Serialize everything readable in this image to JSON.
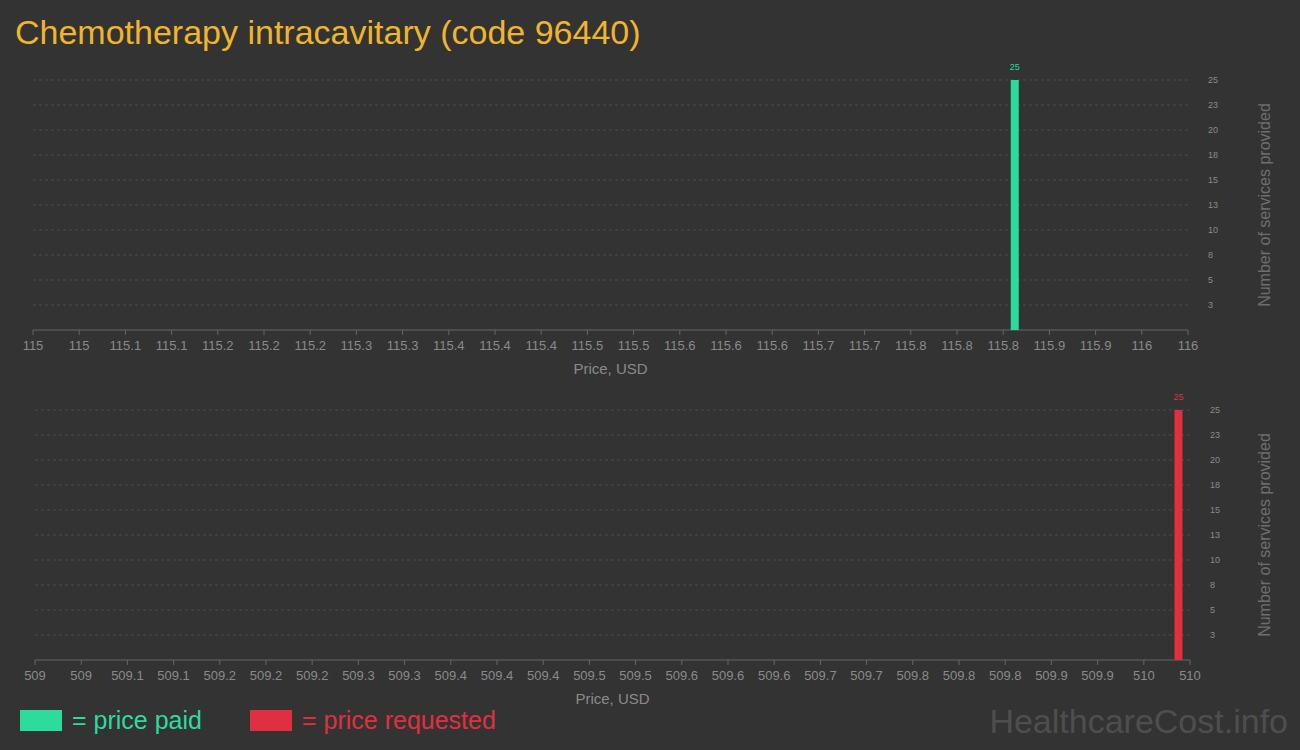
{
  "chart_data": [
    {
      "type": "bar",
      "title": "Chemotherapy intracavitary (code 96440)",
      "x_label": "Price, USD",
      "y_label": "Number of services provided",
      "x": [
        115.85
      ],
      "series": [
        {
          "name": "= price paid",
          "color": "#2bdc9c",
          "values": [
            25
          ]
        }
      ],
      "xlim": [
        115,
        116
      ],
      "xticks": [
        115,
        {
          "value": 115.04,
          "label": "115"
        },
        {
          "value": 115.08,
          "label": "115.1"
        },
        {
          "value": 115.12,
          "label": "115.1"
        },
        {
          "value": 115.16,
          "label": "115.2"
        },
        115.2,
        {
          "value": 115.24,
          "label": "115.2"
        },
        {
          "value": 115.28,
          "label": "115.3"
        },
        {
          "value": 115.32,
          "label": "115.3"
        },
        {
          "value": 115.36,
          "label": "115.4"
        },
        115.4,
        {
          "value": 115.44,
          "label": "115.4"
        },
        {
          "value": 115.48,
          "label": "115.5"
        },
        {
          "value": 115.52,
          "label": "115.5"
        },
        {
          "value": 115.56,
          "label": "115.6"
        },
        115.6,
        {
          "value": 115.64,
          "label": "115.6"
        },
        {
          "value": 115.68,
          "label": "115.7"
        },
        {
          "value": 115.72,
          "label": "115.7"
        },
        {
          "value": 115.76,
          "label": "115.8"
        },
        115.8,
        {
          "value": 115.84,
          "label": "115.8"
        },
        {
          "value": 115.88,
          "label": "115.9"
        },
        {
          "value": 115.92,
          "label": "115.9"
        },
        {
          "value": 115.96,
          "label": "116"
        },
        116
      ],
      "ylim": [
        0,
        25
      ],
      "yticks": [
        {
          "value": 2.5,
          "label": "3"
        },
        5,
        {
          "value": 7.5,
          "label": "8"
        },
        10,
        {
          "value": 12.5,
          "label": "13"
        },
        15,
        {
          "value": 17.5,
          "label": "18"
        },
        20,
        {
          "value": 22.5,
          "label": "23"
        },
        25
      ],
      "grid": true,
      "data_labels": true
    },
    {
      "type": "bar",
      "x_label": "Price, USD",
      "y_label": "Number of services provided",
      "x": [
        509.99
      ],
      "series": [
        {
          "name": "= price requested",
          "color": "#e0303f",
          "values": [
            25
          ]
        }
      ],
      "xlim": [
        509,
        510
      ],
      "xticks": [
        509,
        {
          "value": 509.04,
          "label": "509"
        },
        {
          "value": 509.08,
          "label": "509.1"
        },
        {
          "value": 509.12,
          "label": "509.1"
        },
        {
          "value": 509.16,
          "label": "509.2"
        },
        509.2,
        {
          "value": 509.24,
          "label": "509.2"
        },
        {
          "value": 509.28,
          "label": "509.3"
        },
        {
          "value": 509.32,
          "label": "509.3"
        },
        {
          "value": 509.36,
          "label": "509.4"
        },
        509.4,
        {
          "value": 509.44,
          "label": "509.4"
        },
        {
          "value": 509.48,
          "label": "509.5"
        },
        {
          "value": 509.52,
          "label": "509.5"
        },
        {
          "value": 509.56,
          "label": "509.6"
        },
        509.6,
        {
          "value": 509.64,
          "label": "509.6"
        },
        {
          "value": 509.68,
          "label": "509.7"
        },
        {
          "value": 509.72,
          "label": "509.7"
        },
        {
          "value": 509.76,
          "label": "509.8"
        },
        509.8,
        {
          "value": 509.84,
          "label": "509.8"
        },
        {
          "value": 509.88,
          "label": "509.9"
        },
        {
          "value": 509.92,
          "label": "509.9"
        },
        {
          "value": 509.96,
          "label": "510"
        },
        510
      ],
      "ylim": [
        0,
        25
      ],
      "yticks": [
        {
          "value": 2.5,
          "label": "3"
        },
        5,
        {
          "value": 7.5,
          "label": "8"
        },
        10,
        {
          "value": 12.5,
          "label": "13"
        },
        15,
        {
          "value": 17.5,
          "label": "18"
        },
        20,
        {
          "value": 22.5,
          "label": "23"
        },
        25
      ],
      "grid": true,
      "data_labels": true,
      "annotations": [
        "HealthcareCost.info"
      ]
    }
  ]
}
